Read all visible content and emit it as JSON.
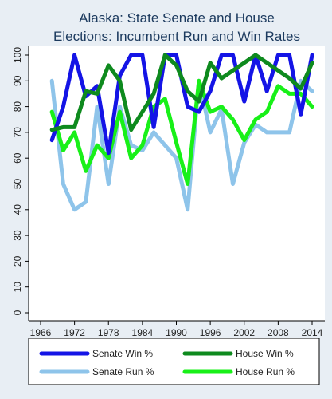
{
  "chart_data": {
    "type": "line",
    "title_lines": [
      "Alaska: State Senate and House",
      "Elections: Incumbent Run and Win Rates"
    ],
    "xlabel": "",
    "ylabel": "",
    "xlim": [
      1966,
      2014
    ],
    "ylim": [
      0,
      100
    ],
    "x_ticks": [
      1966,
      1972,
      1978,
      1984,
      1990,
      1996,
      2002,
      2008,
      2014
    ],
    "y_ticks": [
      0,
      10,
      20,
      30,
      40,
      50,
      60,
      70,
      80,
      90,
      100
    ],
    "grid": false,
    "legend": "bottom",
    "x": [
      1968,
      1970,
      1972,
      1974,
      1976,
      1978,
      1980,
      1982,
      1984,
      1986,
      1988,
      1990,
      1992,
      1994,
      1996,
      1998,
      2000,
      2002,
      2004,
      2006,
      2008,
      2010,
      2012,
      2014
    ],
    "series": [
      {
        "name": "Senate Win %",
        "color": "#1414e6",
        "values": [
          67,
          80,
          100,
          84,
          88,
          62,
          92,
          100,
          100,
          72,
          100,
          100,
          80,
          78,
          86,
          100,
          100,
          82,
          100,
          86,
          100,
          100,
          77,
          100
        ]
      },
      {
        "name": "House Win %",
        "color": "#0e8a1e",
        "values": [
          71,
          72,
          72,
          86,
          85,
          96,
          90,
          71,
          78,
          85,
          100,
          96,
          86,
          82,
          97,
          91,
          94,
          97,
          100,
          97,
          94,
          91,
          87,
          97
        ]
      },
      {
        "name": "Senate Run %",
        "color": "#8ec4ea",
        "values": [
          90,
          50,
          40,
          43,
          80,
          50,
          80,
          65,
          63,
          70,
          65,
          60,
          40,
          90,
          70,
          79,
          50,
          66,
          73,
          70,
          70,
          70,
          90,
          86
        ]
      },
      {
        "name": "House Run %",
        "color": "#18f018",
        "values": [
          78,
          63,
          70,
          55,
          65,
          60,
          78,
          60,
          65,
          80,
          83,
          66,
          50,
          90,
          78,
          80,
          75,
          67,
          75,
          78,
          88,
          85,
          85,
          80
        ]
      }
    ]
  }
}
